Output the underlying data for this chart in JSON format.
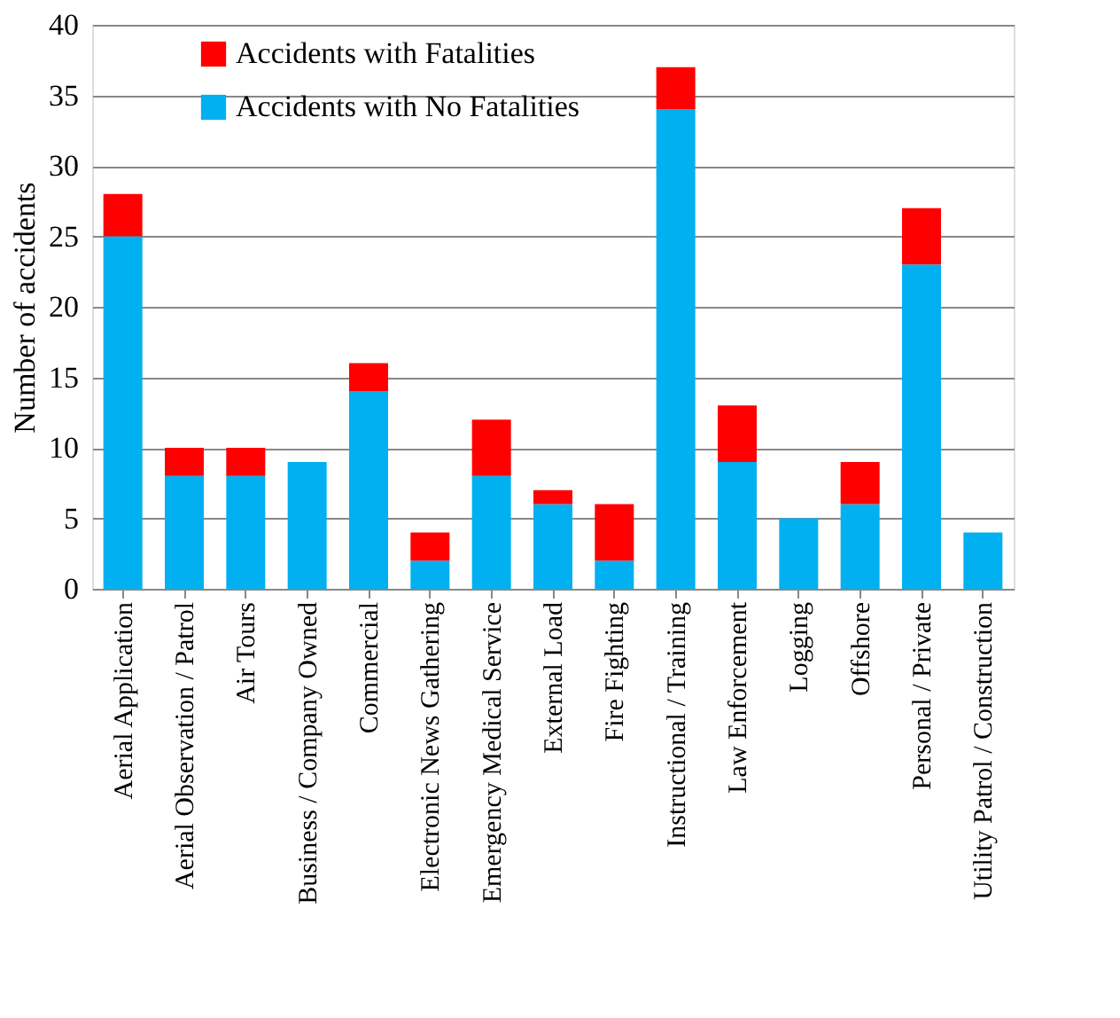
{
  "chart_data": {
    "type": "bar",
    "stacked": true,
    "ylabel": "Number of accidents",
    "categories": [
      "Aerial Application",
      "Aerial Observation / Patrol",
      "Air Tours",
      "Business / Company Owned",
      "Commercial",
      "Electronic News Gathering",
      "Emergency Medical Service",
      "External Load",
      "Fire Fighting",
      "Instructional / Training",
      "Law Enforcement",
      "Logging",
      "Offshore",
      "Personal / Private",
      "Utility Patrol / Construction"
    ],
    "series": [
      {
        "name": "Accidents with No Fatalities",
        "color": "#00b0f0",
        "values": [
          25,
          8,
          8,
          9,
          14,
          2,
          8,
          6,
          2,
          34,
          9,
          5,
          6,
          23,
          4
        ]
      },
      {
        "name": "Accidents with Fatalities",
        "color": "#ff0000",
        "values": [
          3,
          2,
          2,
          0,
          2,
          2,
          4,
          1,
          4,
          3,
          4,
          0,
          3,
          4,
          0
        ]
      }
    ],
    "ylim": [
      0,
      40
    ],
    "yticks": [
      0,
      5,
      10,
      15,
      20,
      25,
      30,
      35,
      40
    ],
    "grid": "y",
    "legend": "top left"
  }
}
